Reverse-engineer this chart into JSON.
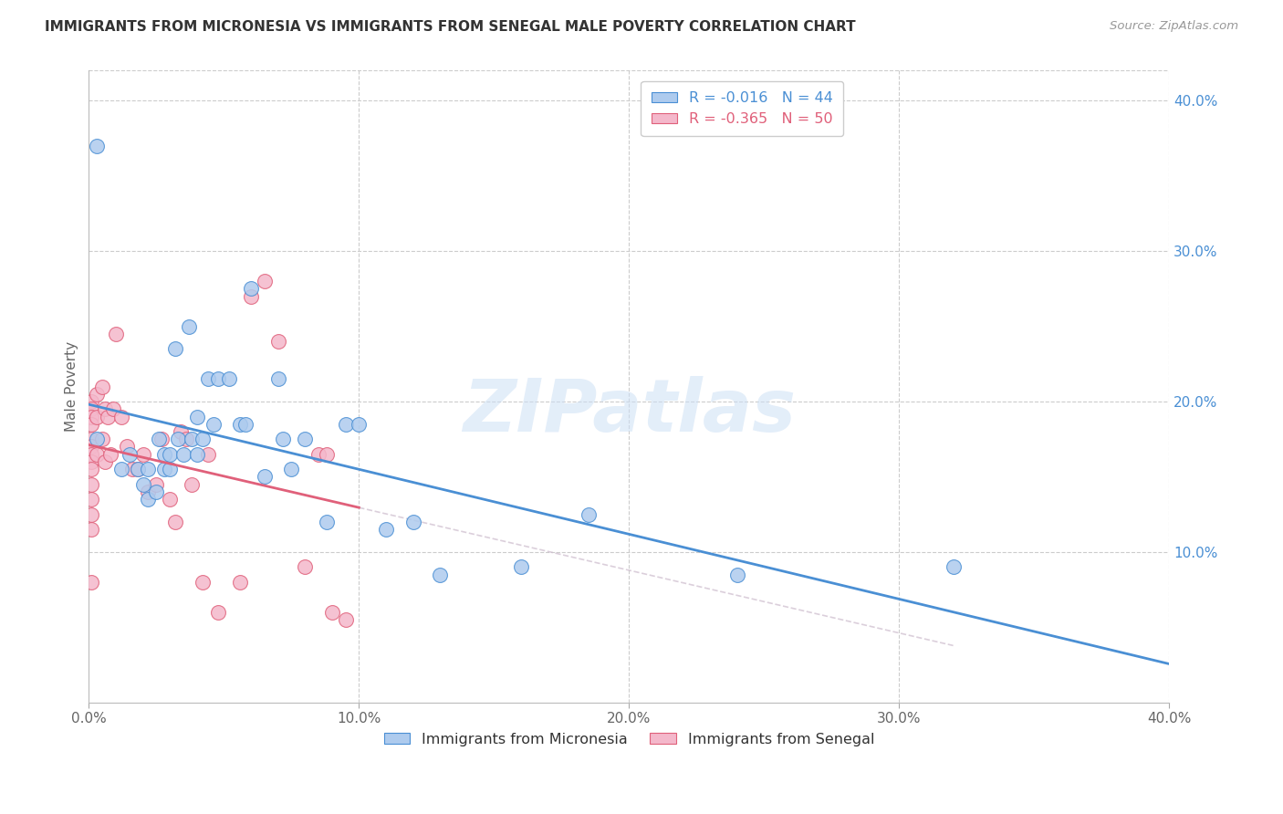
{
  "title": "IMMIGRANTS FROM MICRONESIA VS IMMIGRANTS FROM SENEGAL MALE POVERTY CORRELATION CHART",
  "source": "Source: ZipAtlas.com",
  "ylabel": "Male Poverty",
  "xlim": [
    0.0,
    0.4
  ],
  "ylim": [
    0.0,
    0.42
  ],
  "xticks": [
    0.0,
    0.1,
    0.2,
    0.3,
    0.4
  ],
  "xtick_labels": [
    "0.0%",
    "10.0%",
    "20.0%",
    "30.0%",
    "40.0%"
  ],
  "yticks_right": [
    0.1,
    0.2,
    0.3,
    0.4
  ],
  "ytick_labels_right": [
    "10.0%",
    "20.0%",
    "30.0%",
    "40.0%"
  ],
  "legend1_R": "-0.016",
  "legend1_N": "44",
  "legend2_R": "-0.365",
  "legend2_N": "50",
  "blue_color": "#aecbee",
  "pink_color": "#f4b8cb",
  "blue_line_color": "#4a8fd4",
  "pink_line_color": "#e0607a",
  "watermark": "ZIPatlas",
  "background_color": "#ffffff",
  "grid_color": "#cccccc",
  "micronesia_x": [
    0.003,
    0.012,
    0.015,
    0.018,
    0.02,
    0.022,
    0.022,
    0.025,
    0.026,
    0.028,
    0.028,
    0.03,
    0.03,
    0.032,
    0.033,
    0.035,
    0.037,
    0.038,
    0.04,
    0.04,
    0.042,
    0.044,
    0.046,
    0.048,
    0.052,
    0.056,
    0.058,
    0.06,
    0.065,
    0.07,
    0.072,
    0.075,
    0.08,
    0.088,
    0.095,
    0.1,
    0.11,
    0.12,
    0.13,
    0.16,
    0.185,
    0.24,
    0.32,
    0.003
  ],
  "micronesia_y": [
    0.175,
    0.155,
    0.165,
    0.155,
    0.145,
    0.155,
    0.135,
    0.14,
    0.175,
    0.155,
    0.165,
    0.155,
    0.165,
    0.235,
    0.175,
    0.165,
    0.25,
    0.175,
    0.165,
    0.19,
    0.175,
    0.215,
    0.185,
    0.215,
    0.215,
    0.185,
    0.185,
    0.275,
    0.15,
    0.215,
    0.175,
    0.155,
    0.175,
    0.12,
    0.185,
    0.185,
    0.115,
    0.12,
    0.085,
    0.09,
    0.125,
    0.085,
    0.09,
    0.37
  ],
  "senegal_x": [
    0.001,
    0.001,
    0.001,
    0.001,
    0.001,
    0.001,
    0.001,
    0.001,
    0.001,
    0.001,
    0.001,
    0.001,
    0.001,
    0.001,
    0.003,
    0.003,
    0.003,
    0.005,
    0.005,
    0.006,
    0.006,
    0.007,
    0.008,
    0.009,
    0.01,
    0.012,
    0.014,
    0.016,
    0.018,
    0.02,
    0.022,
    0.025,
    0.027,
    0.03,
    0.032,
    0.034,
    0.036,
    0.038,
    0.042,
    0.044,
    0.048,
    0.056,
    0.06,
    0.065,
    0.07,
    0.08,
    0.085,
    0.088,
    0.09,
    0.095
  ],
  "senegal_y": [
    0.2,
    0.195,
    0.19,
    0.185,
    0.175,
    0.17,
    0.165,
    0.16,
    0.155,
    0.145,
    0.135,
    0.125,
    0.115,
    0.08,
    0.205,
    0.19,
    0.165,
    0.21,
    0.175,
    0.195,
    0.16,
    0.19,
    0.165,
    0.195,
    0.245,
    0.19,
    0.17,
    0.155,
    0.155,
    0.165,
    0.14,
    0.145,
    0.175,
    0.135,
    0.12,
    0.18,
    0.175,
    0.145,
    0.08,
    0.165,
    0.06,
    0.08,
    0.27,
    0.28,
    0.24,
    0.09,
    0.165,
    0.165,
    0.06,
    0.055
  ]
}
